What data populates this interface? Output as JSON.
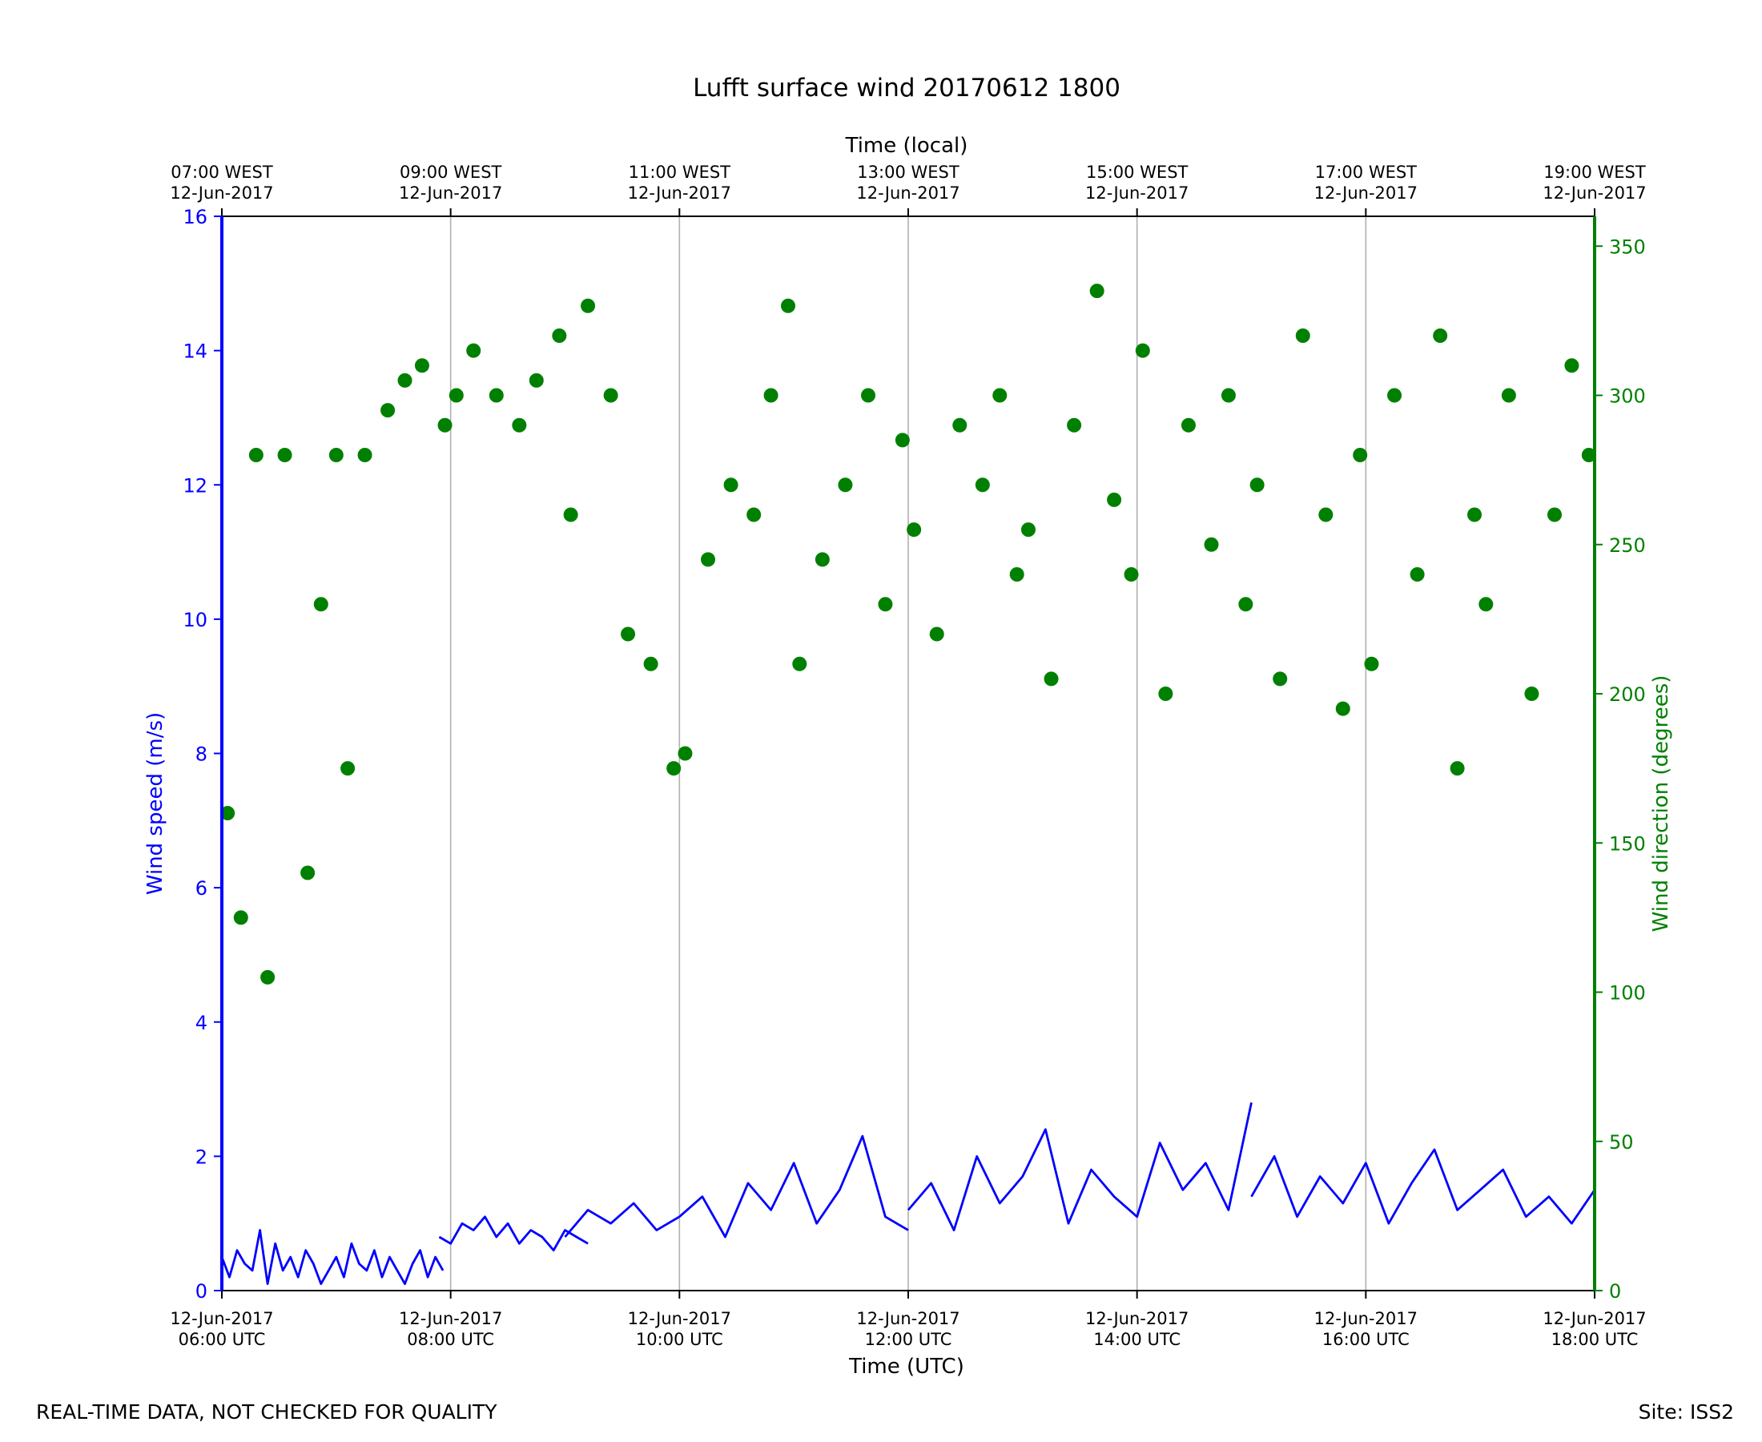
{
  "chart_data": {
    "type": "line",
    "title": "Lufft surface wind 20170612 1800",
    "xlabel": "Time (UTC)",
    "x2label": "Time (local)",
    "ylabel": "Wind speed (m/s)",
    "y2label": "Wind direction (degrees)",
    "xlim": [
      "2017-06-12 06:00",
      "2017-06-12 18:00"
    ],
    "ylim": [
      0,
      16
    ],
    "y2lim": [
      0,
      360
    ],
    "grid": "vertical lines at 2-hour ticks",
    "x_ticks_utc": [
      {
        "date": "12-Jun-2017",
        "time": "06:00 UTC"
      },
      {
        "date": "12-Jun-2017",
        "time": "08:00 UTC"
      },
      {
        "date": "12-Jun-2017",
        "time": "10:00 UTC"
      },
      {
        "date": "12-Jun-2017",
        "time": "12:00 UTC"
      },
      {
        "date": "12-Jun-2017",
        "time": "14:00 UTC"
      },
      {
        "date": "12-Jun-2017",
        "time": "16:00 UTC"
      },
      {
        "date": "12-Jun-2017",
        "time": "18:00 UTC"
      }
    ],
    "x_ticks_local": [
      {
        "time": "07:00 WEST",
        "date": "12-Jun-2017"
      },
      {
        "time": "09:00 WEST",
        "date": "12-Jun-2017"
      },
      {
        "time": "11:00 WEST",
        "date": "12-Jun-2017"
      },
      {
        "time": "13:00 WEST",
        "date": "12-Jun-2017"
      },
      {
        "time": "15:00 WEST",
        "date": "12-Jun-2017"
      },
      {
        "time": "17:00 WEST",
        "date": "12-Jun-2017"
      },
      {
        "time": "19:00 WEST",
        "date": "12-Jun-2017"
      }
    ],
    "y_ticks": [
      "0",
      "2",
      "4",
      "6",
      "8",
      "10",
      "12",
      "14",
      "16"
    ],
    "y2_ticks": [
      "0",
      "50",
      "100",
      "150",
      "200",
      "250",
      "300",
      "350"
    ],
    "colors": {
      "speed": "#0000ff",
      "direction": "#008000",
      "grid": "#b0b0b0"
    },
    "series": [
      {
        "role": "Wind speed (m/s)",
        "style": "line",
        "segments": [
          {
            "x": [
              "06:00",
              "06:04",
              "06:08",
              "06:12",
              "06:16",
              "06:20",
              "06:24",
              "06:28",
              "06:32",
              "06:36",
              "06:40",
              "06:44",
              "06:48",
              "06:52",
              "06:56",
              "07:00",
              "07:04",
              "07:08",
              "07:12",
              "07:16",
              "07:20",
              "07:24",
              "07:28",
              "07:32",
              "07:36",
              "07:40",
              "07:44",
              "07:48",
              "07:52",
              "07:56"
            ],
            "y": [
              0.5,
              0.2,
              0.6,
              0.4,
              0.3,
              0.9,
              0.1,
              0.7,
              0.3,
              0.5,
              0.2,
              0.6,
              0.4,
              0.1,
              0.3,
              0.5,
              0.2,
              0.7,
              0.4,
              0.3,
              0.6,
              0.2,
              0.5,
              0.3,
              0.1,
              0.4,
              0.6,
              0.2,
              0.5,
              0.3
            ]
          },
          {
            "x": [
              "07:54",
              "08:00",
              "08:06",
              "08:12",
              "08:18",
              "08:24",
              "08:30",
              "08:36",
              "08:42",
              "08:48",
              "08:54",
              "09:00",
              "09:06",
              "09:12"
            ],
            "y": [
              0.8,
              0.7,
              1.0,
              0.9,
              1.1,
              0.8,
              1.0,
              0.7,
              0.9,
              0.8,
              0.6,
              0.9,
              0.8,
              0.7
            ]
          },
          {
            "x": [
              "09:00",
              "09:12",
              "09:24",
              "09:36",
              "09:48",
              "10:00",
              "10:12",
              "10:24",
              "10:36",
              "10:48",
              "11:00",
              "11:12",
              "11:24",
              "11:36",
              "11:48",
              "12:00"
            ],
            "y": [
              0.8,
              1.2,
              1.0,
              1.3,
              0.9,
              1.1,
              1.4,
              0.8,
              1.6,
              1.2,
              1.9,
              1.0,
              1.5,
              2.3,
              1.1,
              0.9
            ]
          },
          {
            "x": [
              "12:00",
              "12:12",
              "12:24",
              "12:36",
              "12:48",
              "13:00",
              "13:12",
              "13:24",
              "13:36",
              "13:48",
              "14:00",
              "14:12",
              "14:24",
              "14:36",
              "14:48",
              "15:00"
            ],
            "y": [
              1.2,
              1.6,
              0.9,
              2.0,
              1.3,
              1.7,
              2.4,
              1.0,
              1.8,
              1.4,
              1.1,
              2.2,
              1.5,
              1.9,
              1.2,
              2.8
            ]
          },
          {
            "x": [
              "15:00",
              "15:12",
              "15:24",
              "15:36",
              "15:48",
              "16:00",
              "16:12",
              "16:24",
              "16:36",
              "16:48",
              "17:00",
              "17:12",
              "17:24",
              "17:36",
              "17:48",
              "18:00"
            ],
            "y": [
              1.4,
              2.0,
              1.1,
              1.7,
              1.3,
              1.9,
              1.0,
              1.6,
              2.1,
              1.2,
              1.5,
              1.8,
              1.1,
              1.4,
              1.0,
              1.5
            ]
          }
        ]
      },
      {
        "role": "Wind direction (degrees)",
        "style": "scatter",
        "x": [
          "06:03",
          "06:10",
          "06:18",
          "06:24",
          "06:33",
          "06:45",
          "06:52",
          "07:00",
          "07:06",
          "07:15",
          "07:27",
          "07:36",
          "07:45",
          "07:57",
          "08:03",
          "08:12",
          "08:24",
          "08:36",
          "08:45",
          "08:57",
          "09:03",
          "09:12",
          "09:24",
          "09:33",
          "09:45",
          "09:57",
          "10:03",
          "10:15",
          "10:27",
          "10:39",
          "10:48",
          "10:57",
          "11:03",
          "11:15",
          "11:27",
          "11:39",
          "11:48",
          "11:57",
          "12:03",
          "12:15",
          "12:27",
          "12:39",
          "12:48",
          "12:57",
          "13:03",
          "13:15",
          "13:27",
          "13:39",
          "13:48",
          "13:57",
          "14:03",
          "14:15",
          "14:27",
          "14:39",
          "14:48",
          "14:57",
          "15:03",
          "15:15",
          "15:27",
          "15:39",
          "15:48",
          "15:57",
          "16:03",
          "16:15",
          "16:27",
          "16:39",
          "16:48",
          "16:57",
          "17:03",
          "17:15",
          "17:27",
          "17:39",
          "17:48",
          "17:57"
        ],
        "y": [
          160,
          125,
          280,
          105,
          280,
          140,
          230,
          280,
          175,
          280,
          295,
          305,
          310,
          290,
          300,
          315,
          300,
          290,
          305,
          320,
          260,
          330,
          300,
          220,
          210,
          175,
          180,
          245,
          270,
          260,
          300,
          330,
          210,
          245,
          270,
          300,
          230,
          285,
          255,
          220,
          290,
          270,
          300,
          240,
          255,
          205,
          290,
          335,
          265,
          240,
          315,
          200,
          290,
          250,
          300,
          230,
          270,
          205,
          320,
          260,
          195,
          280,
          210,
          300,
          240,
          320,
          175,
          260,
          230,
          300,
          200,
          260,
          310,
          280
        ]
      }
    ]
  },
  "footer": {
    "left": "REAL-TIME DATA, NOT CHECKED FOR QUALITY",
    "right": "Site: ISS2"
  }
}
